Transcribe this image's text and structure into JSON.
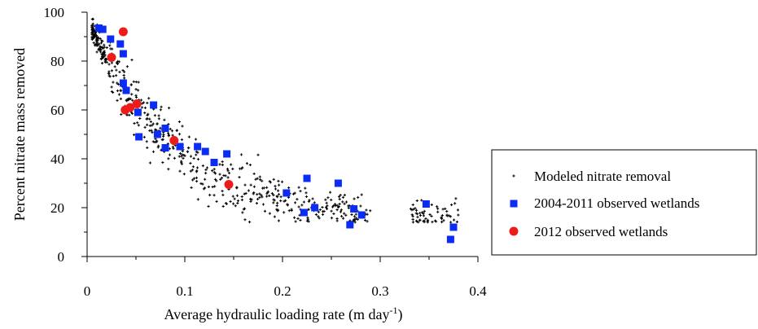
{
  "chart_data": {
    "type": "scatter",
    "xlabel": "Average hydraulic loading rate (m day",
    "xlabel_superscript": "-1",
    "xlabel_suffix": ")",
    "ylabel": "Percent nitrate mass removed",
    "xlim": [
      0,
      0.4
    ],
    "ylim": [
      0,
      100
    ],
    "x_ticks": [
      "0",
      "0.1",
      "0.2",
      "0.3",
      "0.4"
    ],
    "y_ticks": [
      "0",
      "20",
      "40",
      "60",
      "80",
      "100"
    ],
    "grid": false,
    "legend_position": "right",
    "series": [
      {
        "name": "Modeled nitrate removal",
        "marker": "plus",
        "color": "#000000",
        "curve": {
          "model": "y = 15 + 83*exp(-x/0.085)",
          "x_range": [
            0.005,
            0.38
          ],
          "count": 700,
          "note": "dense cloud of points around curve"
        },
        "points": []
      },
      {
        "name": "2004-2011 observed wetlands",
        "marker": "square",
        "color": "#0a2cf5",
        "points": [
          [
            0.012,
            93.5
          ],
          [
            0.016,
            93.0
          ],
          [
            0.024,
            89.0
          ],
          [
            0.034,
            87.0
          ],
          [
            0.037,
            83.0
          ],
          [
            0.037,
            71.0
          ],
          [
            0.04,
            68.0
          ],
          [
            0.052,
            59.0
          ],
          [
            0.068,
            62.0
          ],
          [
            0.072,
            50.0
          ],
          [
            0.053,
            49.0
          ],
          [
            0.08,
            52.5
          ],
          [
            0.08,
            44.5
          ],
          [
            0.095,
            45.0
          ],
          [
            0.113,
            45.0
          ],
          [
            0.121,
            43.0
          ],
          [
            0.13,
            38.5
          ],
          [
            0.143,
            42.0
          ],
          [
            0.204,
            26.0
          ],
          [
            0.222,
            18.0
          ],
          [
            0.225,
            32.0
          ],
          [
            0.233,
            20.0
          ],
          [
            0.257,
            30.0
          ],
          [
            0.269,
            13.0
          ],
          [
            0.273,
            19.5
          ],
          [
            0.281,
            17.0
          ],
          [
            0.347,
            21.5
          ],
          [
            0.372,
            7.0
          ],
          [
            0.375,
            12.0
          ]
        ]
      },
      {
        "name": "2012 observed wetlands",
        "marker": "circle",
        "color": "#ee1b1b",
        "points": [
          [
            0.037,
            92.0
          ],
          [
            0.025,
            81.5
          ],
          [
            0.039,
            60.0
          ],
          [
            0.044,
            61.0
          ],
          [
            0.051,
            62.5
          ],
          [
            0.089,
            47.5
          ],
          [
            0.145,
            29.5
          ]
        ]
      }
    ]
  }
}
